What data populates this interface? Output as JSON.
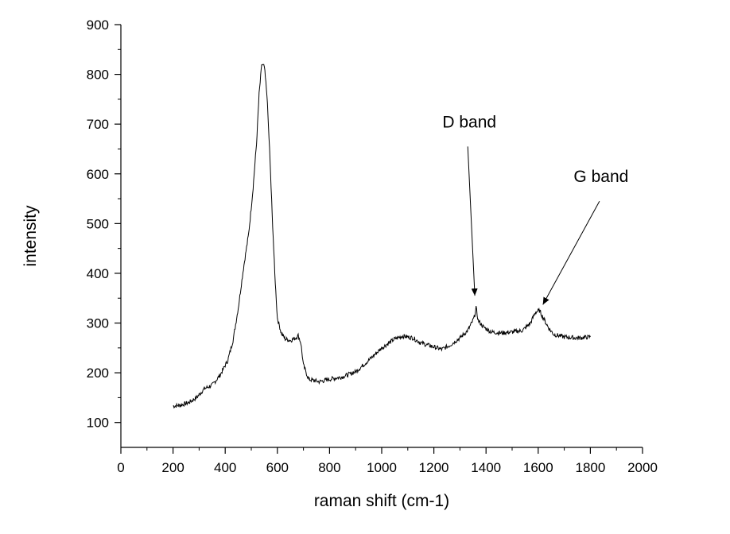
{
  "chart_data": {
    "type": "line",
    "title": "",
    "xlabel": "raman shift (cm-1)",
    "ylabel": "intensity",
    "xlim": [
      0,
      2000
    ],
    "ylim": [
      50,
      900
    ],
    "x_ticks": [
      "0",
      "200",
      "400",
      "600",
      "800",
      "1000",
      "1200",
      "1400",
      "1600",
      "1800",
      "2000"
    ],
    "y_ticks": [
      "100",
      "200",
      "300",
      "400",
      "500",
      "600",
      "700",
      "800",
      "900"
    ],
    "grid": false,
    "series": [
      {
        "name": "",
        "color": "#000000",
        "points": [
          [
            200,
            133
          ],
          [
            230,
            135
          ],
          [
            260,
            140
          ],
          [
            290,
            150
          ],
          [
            320,
            168
          ],
          [
            350,
            175
          ],
          [
            380,
            195
          ],
          [
            410,
            225
          ],
          [
            430,
            265
          ],
          [
            450,
            330
          ],
          [
            470,
            410
          ],
          [
            490,
            480
          ],
          [
            505,
            560
          ],
          [
            520,
            660
          ],
          [
            530,
            760
          ],
          [
            540,
            820
          ],
          [
            550,
            815
          ],
          [
            560,
            760
          ],
          [
            570,
            650
          ],
          [
            580,
            520
          ],
          [
            590,
            400
          ],
          [
            600,
            310
          ],
          [
            615,
            280
          ],
          [
            630,
            268
          ],
          [
            650,
            265
          ],
          [
            670,
            270
          ],
          [
            680,
            275
          ],
          [
            690,
            260
          ],
          [
            700,
            215
          ],
          [
            720,
            187
          ],
          [
            760,
            182
          ],
          [
            800,
            187
          ],
          [
            850,
            192
          ],
          [
            900,
            202
          ],
          [
            950,
            225
          ],
          [
            1000,
            250
          ],
          [
            1050,
            268
          ],
          [
            1080,
            274
          ],
          [
            1120,
            270
          ],
          [
            1150,
            260
          ],
          [
            1200,
            252
          ],
          [
            1230,
            247
          ],
          [
            1260,
            255
          ],
          [
            1300,
            270
          ],
          [
            1330,
            285
          ],
          [
            1345,
            300
          ],
          [
            1355,
            312
          ],
          [
            1362,
            330
          ],
          [
            1370,
            305
          ],
          [
            1390,
            292
          ],
          [
            1420,
            282
          ],
          [
            1460,
            280
          ],
          [
            1500,
            282
          ],
          [
            1540,
            285
          ],
          [
            1570,
            300
          ],
          [
            1590,
            322
          ],
          [
            1605,
            325
          ],
          [
            1620,
            310
          ],
          [
            1640,
            290
          ],
          [
            1660,
            277
          ],
          [
            1700,
            272
          ],
          [
            1750,
            270
          ],
          [
            1800,
            272
          ]
        ]
      }
    ],
    "annotations": [
      {
        "text": "D band",
        "arrow_from": [
          1330,
          655
        ],
        "arrow_to": [
          1357,
          355
        ]
      },
      {
        "text": "G band",
        "arrow_from": [
          1835,
          545
        ],
        "arrow_to": [
          1618,
          337
        ]
      }
    ]
  }
}
